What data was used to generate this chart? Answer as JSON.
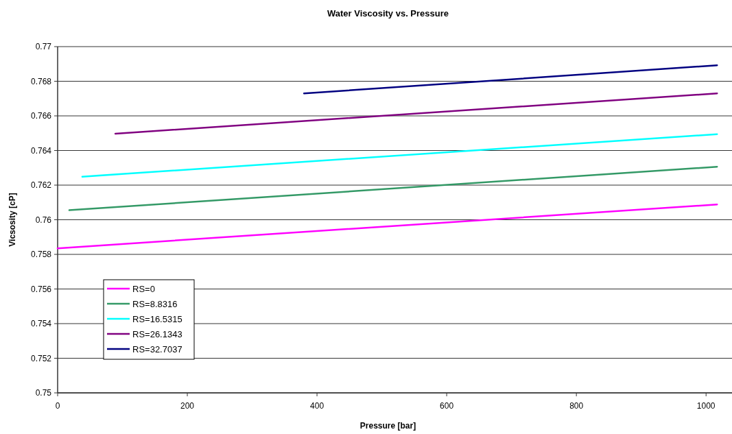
{
  "chart_data": {
    "type": "line",
    "title": "Water Viscosity vs. Pressure",
    "xlabel": "Pressure [bar]",
    "ylabel": "Vicsosity [cP]",
    "xlim": [
      0,
      1040
    ],
    "xticks": [
      0,
      200,
      400,
      600,
      800,
      1000
    ],
    "ylim": [
      0.75,
      0.77
    ],
    "yticks": [
      0.75,
      0.752,
      0.754,
      0.756,
      0.758,
      0.76,
      0.762,
      0.764,
      0.766,
      0.768,
      0.77
    ],
    "grid": "y",
    "legend": "bottom left",
    "marker": "none",
    "line_style": "solid",
    "series": [
      {
        "name": "RS=0",
        "color": "#ff00ff",
        "x": [
          0,
          1017
        ],
        "values": [
          0.75835,
          0.76088
        ]
      },
      {
        "name": "RS=8.8316",
        "color": "#339966",
        "x": [
          18,
          1017
        ],
        "values": [
          0.76055,
          0.76306
        ]
      },
      {
        "name": "RS=16.5315",
        "color": "#00ffff",
        "x": [
          38,
          1017
        ],
        "values": [
          0.76249,
          0.76494
        ]
      },
      {
        "name": "RS=26.1343",
        "color": "#800080",
        "x": [
          89,
          1017
        ],
        "values": [
          0.76497,
          0.7673
        ]
      },
      {
        "name": "RS=32.7037",
        "color": "#000080",
        "x": [
          380,
          1017
        ],
        "values": [
          0.7673,
          0.76892
        ]
      }
    ]
  }
}
